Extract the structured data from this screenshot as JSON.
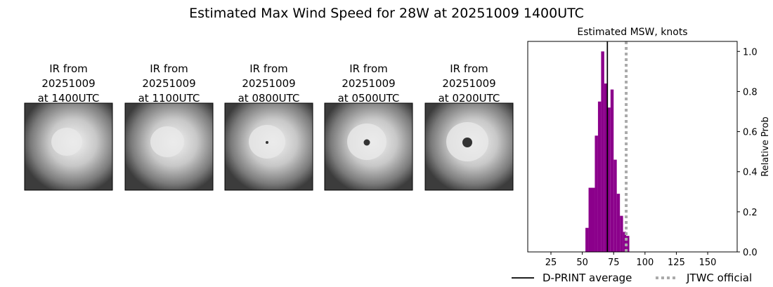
{
  "title": "Estimated Max Wind Speed for 28W at 20251009 1400UTC",
  "panels": [
    {
      "title": [
        "IR from",
        "20251009",
        "at 1400UTC"
      ]
    },
    {
      "title": [
        "IR from",
        "20251009",
        "at 1100UTC"
      ]
    },
    {
      "title": [
        "IR from",
        "20251009",
        "at 0800UTC"
      ]
    },
    {
      "title": [
        "IR from",
        "20251009",
        "at 0500UTC"
      ]
    },
    {
      "title": [
        "IR from",
        "20251009",
        "at 0200UTC"
      ]
    }
  ],
  "chart_data": {
    "type": "histogram",
    "title": "Estimated MSW, knots",
    "ylabel": "Relative Prob",
    "bins": [
      52.5,
      55,
      57.5,
      60,
      62.5,
      65,
      67.5,
      70,
      72.5,
      75,
      77.5,
      80,
      82.5,
      85,
      87.5
    ],
    "counts": [
      0.12,
      0.32,
      0.32,
      0.58,
      0.75,
      1.0,
      0.84,
      0.72,
      0.81,
      0.46,
      0.29,
      0.18,
      0.1,
      0.08
    ],
    "color": "#8b008b",
    "xlim": [
      6.5,
      173.5
    ],
    "ylim": [
      0,
      1.05
    ],
    "xticks": [
      25,
      50,
      75,
      100,
      125,
      150
    ],
    "yticks": [
      {
        "value": 0,
        "label": "0.0"
      },
      {
        "value": 0.2,
        "label": "0.2"
      },
      {
        "value": 0.4,
        "label": "0.4"
      },
      {
        "value": 0.6,
        "label": "0.6"
      },
      {
        "value": 0.8,
        "label": "0.8"
      },
      {
        "value": 1,
        "label": "1.0"
      }
    ],
    "lines": [
      {
        "name": "D-PRINT average",
        "value": 70,
        "color": "#000000",
        "style": "solid"
      },
      {
        "name": "JTWC official",
        "value": 85,
        "color": "#aaaaaa",
        "style": "dotted"
      }
    ],
    "legend": "lower center"
  }
}
